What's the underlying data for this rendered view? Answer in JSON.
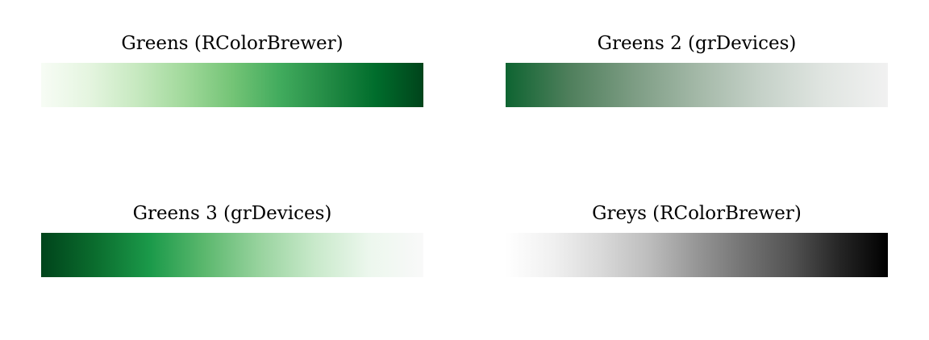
{
  "panels": [
    {
      "title": "Greens (RColorBrewer)",
      "colors": [
        "#f7fcf5",
        "#e5f5e0",
        "#c7e9c0",
        "#a1d99b",
        "#74c476",
        "#41ab5d",
        "#238b45",
        "#006d2c",
        "#00441b"
      ]
    },
    {
      "title": "Greens 2 (grDevices)",
      "colors": [
        "#0e6431",
        "#4f7f5c",
        "#7c9c83",
        "#a3b8a7",
        "#c5d1c8",
        "#e0e5e1",
        "#f1f1f1"
      ]
    },
    {
      "title": "Greens 3 (grDevices)",
      "colors": [
        "#00441b",
        "#0b6d2e",
        "#1b9a4a",
        "#5cb86e",
        "#98d39e",
        "#c8e9ca",
        "#ecf7ed",
        "#f9f9f9"
      ]
    },
    {
      "title": "Greys (RColorBrewer)",
      "colors": [
        "#ffffff",
        "#f0f0f0",
        "#d9d9d9",
        "#bdbdbd",
        "#969696",
        "#737373",
        "#525252",
        "#252525",
        "#000000"
      ]
    }
  ]
}
